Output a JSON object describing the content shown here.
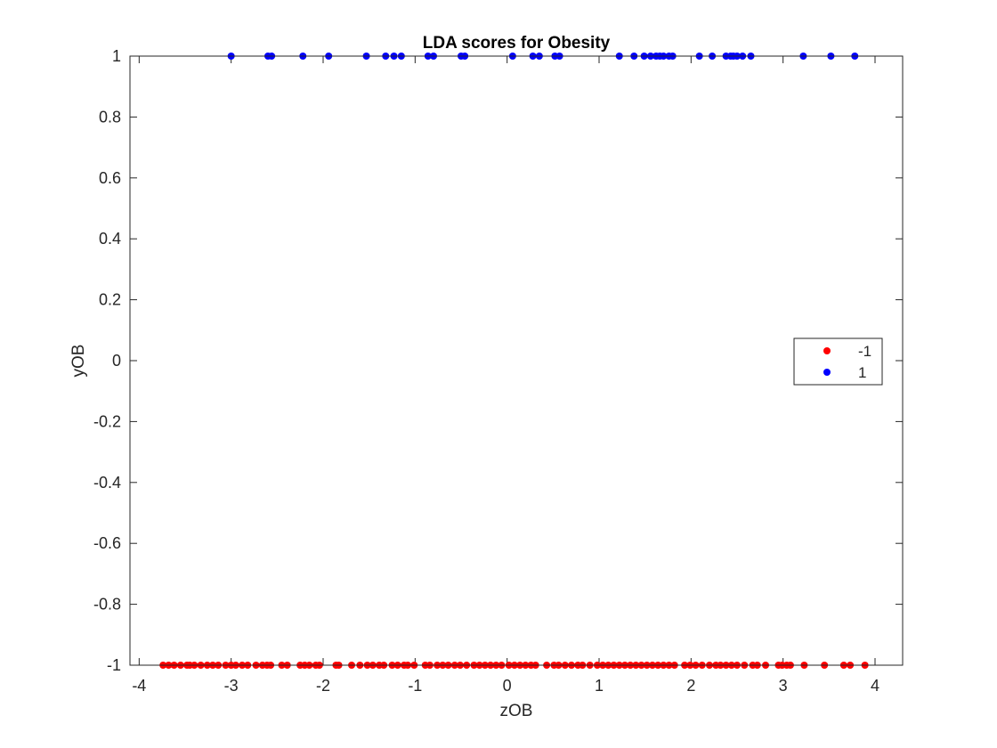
{
  "chart_data": {
    "type": "scatter",
    "title": "LDA scores for Obesity",
    "xlabel": "zOB",
    "ylabel": "yOB",
    "xlim": [
      -4.1,
      4.3
    ],
    "ylim": [
      -1,
      1
    ],
    "xticks": [
      -4,
      -3,
      -2,
      -1,
      0,
      1,
      2,
      3,
      4
    ],
    "xtick_labels": [
      "-4",
      "-3",
      "-2",
      "-1",
      "0",
      "1",
      "2",
      "3",
      "4"
    ],
    "yticks": [
      -1,
      -0.8,
      -0.6,
      -0.4,
      -0.2,
      0,
      0.2,
      0.4,
      0.6,
      0.8,
      1
    ],
    "ytick_labels": [
      "-1",
      "-0.8",
      "-0.6",
      "-0.4",
      "-0.2",
      "0",
      "0.2",
      "0.4",
      "0.6",
      "0.8",
      "1"
    ],
    "grid": false,
    "legend_position": "right",
    "series": [
      {
        "name": "-1",
        "color": "#ff0000",
        "y": -1,
        "x": [
          -3.74,
          -3.68,
          -3.62,
          -3.55,
          -3.48,
          -3.45,
          -3.4,
          -3.33,
          -3.26,
          -3.2,
          -3.14,
          -3.06,
          -3.0,
          -2.95,
          -2.88,
          -2.82,
          -2.73,
          -2.66,
          -2.61,
          -2.57,
          -2.45,
          -2.39,
          -2.25,
          -2.2,
          -2.15,
          -2.08,
          -2.04,
          -1.86,
          -1.83,
          -1.69,
          -1.6,
          -1.52,
          -1.46,
          -1.39,
          -1.34,
          -1.25,
          -1.19,
          -1.12,
          -1.08,
          -1.01,
          -0.89,
          -0.84,
          -0.76,
          -0.7,
          -0.64,
          -0.57,
          -0.51,
          -0.44,
          -0.36,
          -0.3,
          -0.24,
          -0.18,
          -0.12,
          -0.06,
          0.02,
          0.08,
          0.14,
          0.2,
          0.26,
          0.31,
          0.43,
          0.51,
          0.56,
          0.63,
          0.7,
          0.77,
          0.82,
          0.9,
          0.98,
          1.04,
          1.1,
          1.16,
          1.22,
          1.28,
          1.34,
          1.4,
          1.46,
          1.52,
          1.58,
          1.64,
          1.7,
          1.76,
          1.82,
          1.93,
          1.99,
          2.05,
          2.12,
          2.2,
          2.27,
          2.32,
          2.38,
          2.44,
          2.5,
          2.58,
          2.67,
          2.72,
          2.81,
          2.95,
          2.99,
          3.04,
          3.08,
          3.23,
          3.45,
          3.66,
          3.73,
          3.89
        ]
      },
      {
        "name": "1",
        "color": "#0000ff",
        "y": 1,
        "x": [
          -3.0,
          -2.6,
          -2.56,
          -2.22,
          -1.94,
          -1.53,
          -1.32,
          -1.23,
          -1.15,
          -0.86,
          -0.8,
          -0.5,
          -0.46,
          0.06,
          0.28,
          0.35,
          0.52,
          0.57,
          1.22,
          1.38,
          1.49,
          1.56,
          1.62,
          1.66,
          1.7,
          1.76,
          1.8,
          2.09,
          2.23,
          2.38,
          2.43,
          2.46,
          2.5,
          2.56,
          2.65,
          3.22,
          3.52,
          3.78
        ]
      }
    ]
  }
}
